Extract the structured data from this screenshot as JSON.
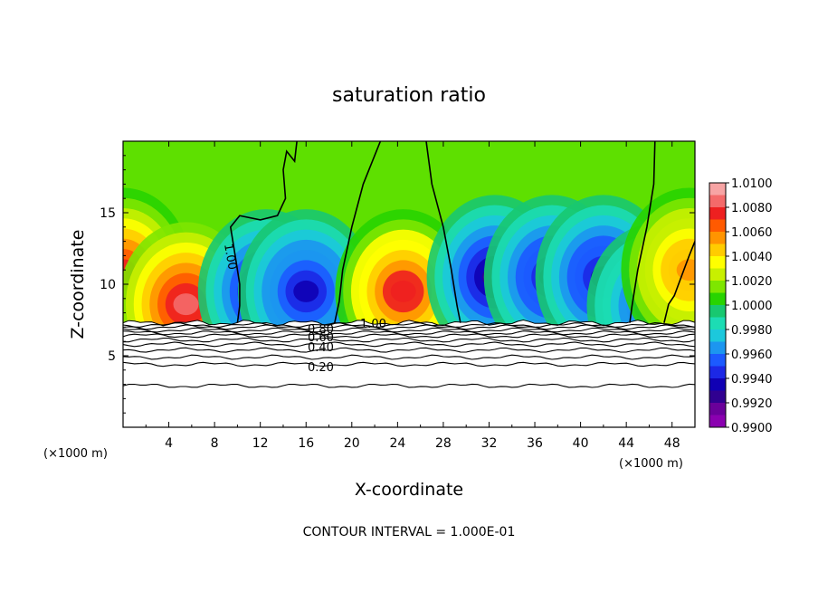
{
  "chart_data": {
    "type": "heatmap",
    "title": "saturation ratio",
    "xlabel": "X-coordinate",
    "ylabel": "Z-coordinate",
    "x_unit_left": "(×1000 m)",
    "x_unit_right": "(×1000 m)",
    "xlim": [
      0,
      50
    ],
    "ylim": [
      0,
      20
    ],
    "x_ticks": [
      "4",
      "8",
      "12",
      "16",
      "20",
      "24",
      "28",
      "32",
      "36",
      "40",
      "44",
      "48"
    ],
    "y_ticks": [
      "5",
      "10",
      "15"
    ],
    "footer": "CONTOUR INTERVAL = 1.000E-01",
    "colorbar": {
      "labels": [
        "1.0100",
        "1.0080",
        "1.0060",
        "1.0040",
        "1.0020",
        "1.0000",
        "0.9980",
        "0.9960",
        "0.9940",
        "0.9920",
        "0.9900"
      ],
      "range": [
        0.99,
        1.01
      ],
      "colors": [
        "#f7a4a4",
        "#f46a6a",
        "#ee2020",
        "#ff5a00",
        "#ff9400",
        "#ffcc00",
        "#ffff00",
        "#c8f000",
        "#7ee600",
        "#28d400",
        "#18c870",
        "#1cdcb4",
        "#1cc8dc",
        "#1c96f0",
        "#1c5aff",
        "#1c28e6",
        "#1000b4",
        "#300090",
        "#6a009a",
        "#8a00b0"
      ]
    },
    "contour_labels": [
      "1.00",
      "0.80",
      "1.00",
      "0.60",
      "0.40",
      "0.20"
    ],
    "lower_contour_heights": [
      2.9,
      4.4,
      4.9,
      5.4,
      5.8,
      6.1,
      6.4,
      6.6,
      6.8,
      7.0,
      7.15
    ],
    "cloud_base_height": 7.3,
    "anomalies": [
      {
        "x": 0.0,
        "z": 11.0,
        "value": 1.0075
      },
      {
        "x": 5.5,
        "z": 8.6,
        "value": 1.0085
      },
      {
        "x": 12.5,
        "z": 9.5,
        "value": 0.9925
      },
      {
        "x": 16.0,
        "z": 9.5,
        "value": 0.994
      },
      {
        "x": 24.5,
        "z": 9.5,
        "value": 1.008
      },
      {
        "x": 32.5,
        "z": 10.5,
        "value": 0.993
      },
      {
        "x": 37.5,
        "z": 10.5,
        "value": 0.9935
      },
      {
        "x": 42.0,
        "z": 10.5,
        "value": 0.9935
      },
      {
        "x": 46.5,
        "z": 8.5,
        "value": 0.995
      },
      {
        "x": 49.5,
        "z": 11.0,
        "value": 1.0055
      }
    ]
  }
}
